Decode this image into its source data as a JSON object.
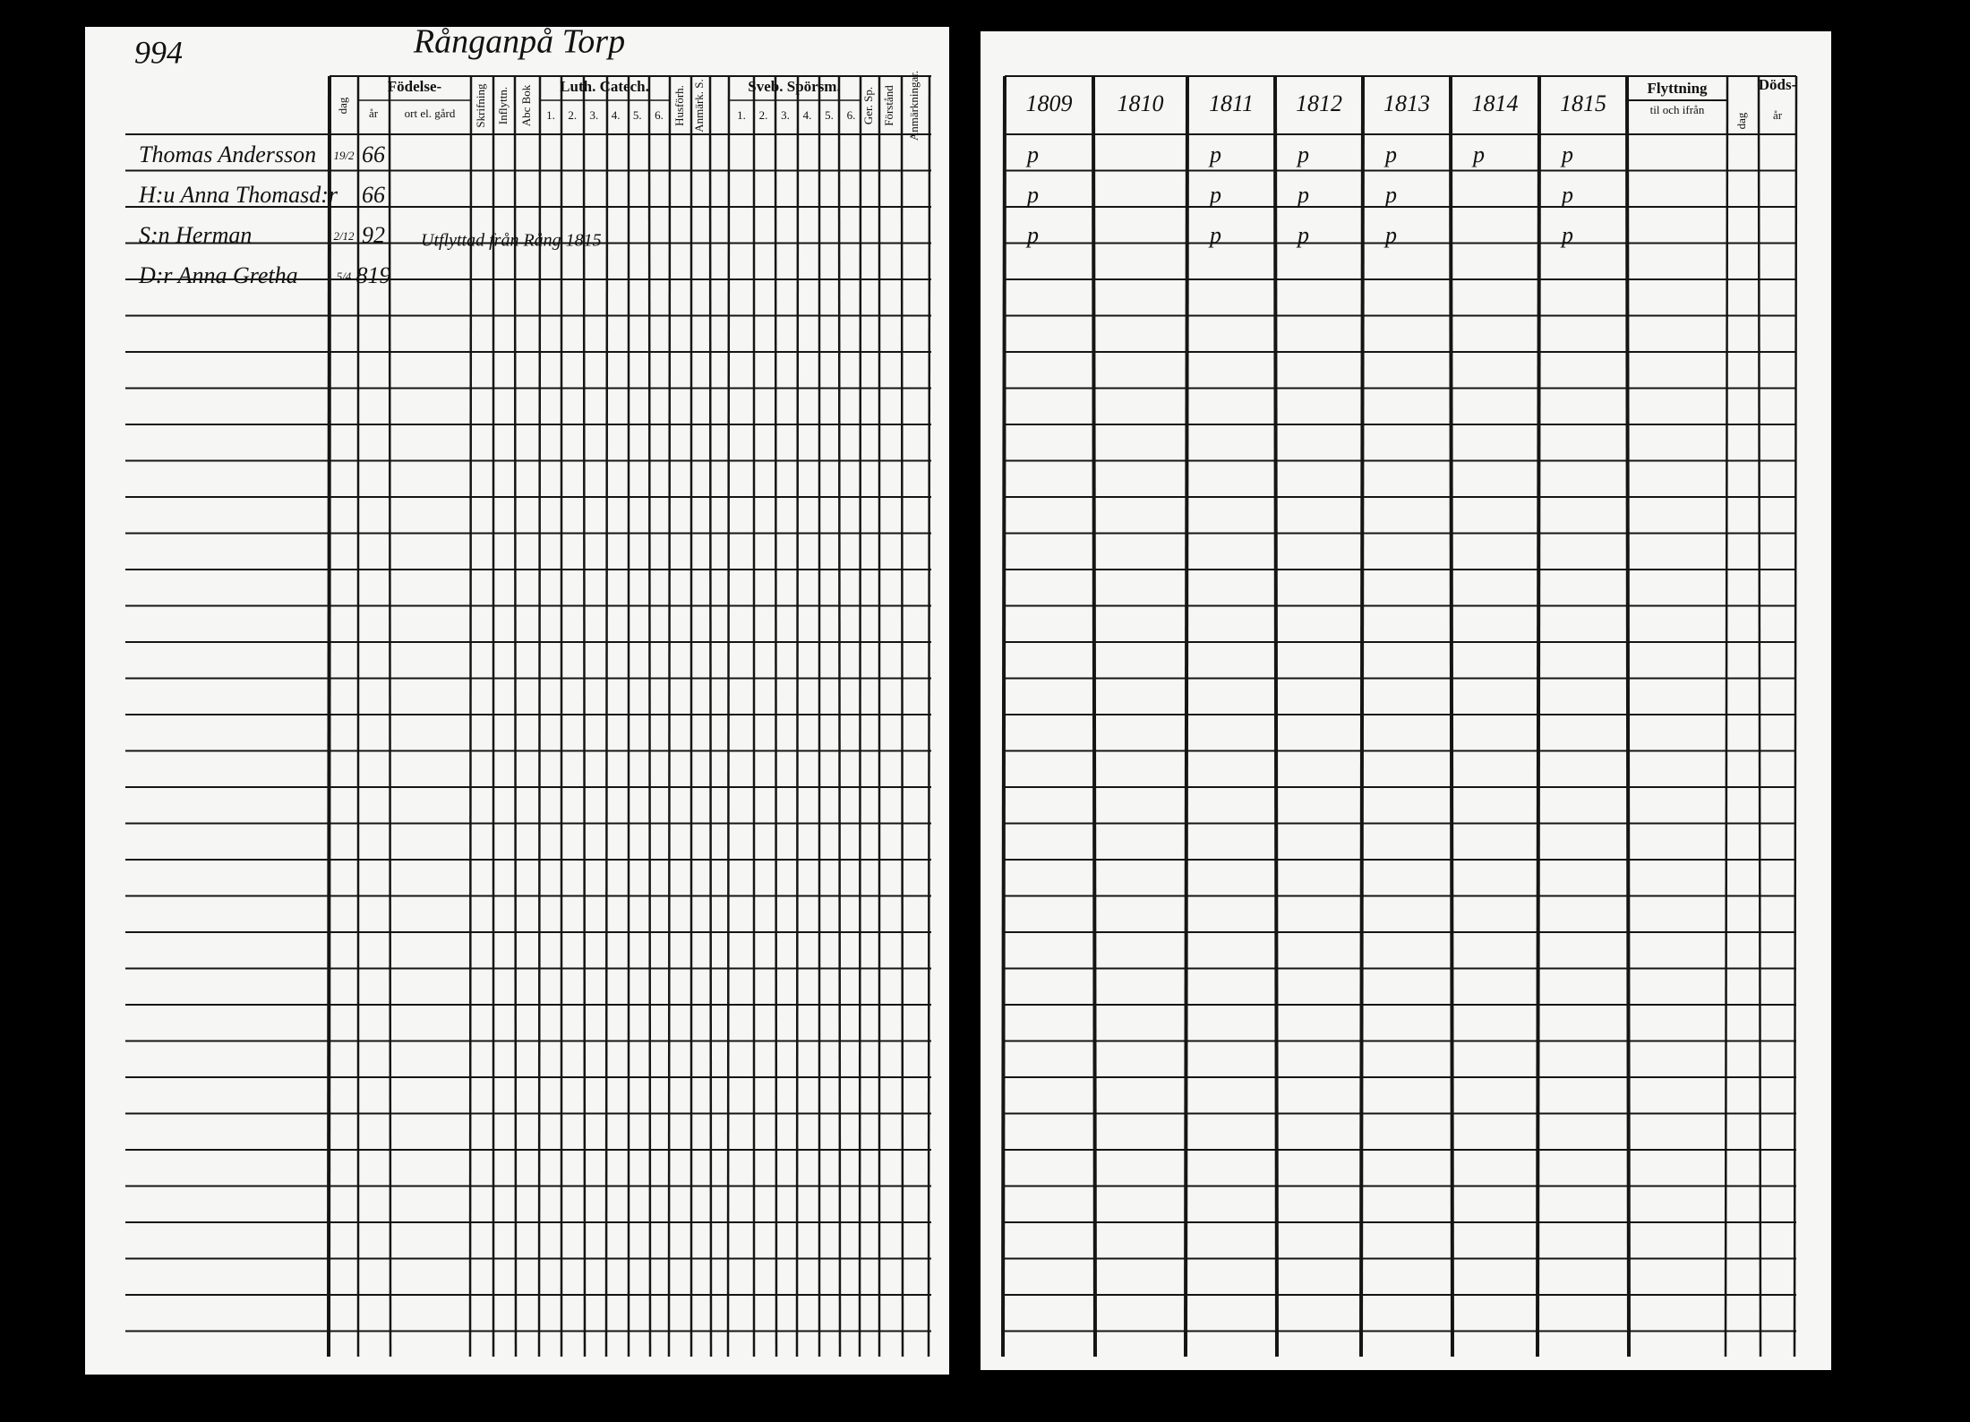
{
  "page_number": "994",
  "title": "Rånganpå Torp",
  "left_header": {
    "fodelse": "Födelse-",
    "dag": "dag",
    "ar": "år",
    "ort": "ort el. gård",
    "skrifning": "Skrifning",
    "inflyttning": "Inflyttn.",
    "abc_bok": "Abc Bok",
    "luth_catech": "Luth. Catech.",
    "luth_nums": [
      "1.",
      "2.",
      "3.",
      "4.",
      "5.",
      "6."
    ],
    "husforhor": "Husförh.",
    "anmark_s": "Anmärk. S.",
    "sveb_sporsm": "Sveb. Spörsm.",
    "sveb_nums": [
      "1.",
      "2.",
      "3.",
      "4.",
      "5.",
      "6."
    ],
    "ger_sp": "Ger. Sp.",
    "forstand": "Förstånd",
    "anmarkningar": "Anmärkningar."
  },
  "right_header": {
    "years": [
      "1809",
      "1810",
      "1811",
      "1812",
      "1813",
      "1814",
      "1815"
    ],
    "flyttning": "Flyttning",
    "flyttning_sub": "til och ifrån",
    "dods": "Döds-",
    "dods_dag": "dag",
    "dods_ar": "år"
  },
  "rows": [
    {
      "name": "Thomas Andersson",
      "day": "19/2",
      "year": "66",
      "marks": [
        "p",
        null,
        "p",
        "p",
        "p",
        "p",
        "p"
      ]
    },
    {
      "name": "H:u Anna Thomasd:r",
      "day": "",
      "year": "66",
      "marks": [
        "p",
        null,
        "p",
        "p",
        "p",
        null,
        "p"
      ]
    },
    {
      "name": "S:n Herman",
      "day": "2/12",
      "year": "92",
      "marks": [
        "p",
        null,
        "p",
        "p",
        "p",
        null,
        "p"
      ]
    },
    {
      "name": "D:r Anna Gretha",
      "day": "5/4",
      "year": "819",
      "marks": [
        null,
        null,
        null,
        null,
        null,
        null,
        null
      ]
    }
  ],
  "note": "Utflyttad från Rång 1815"
}
